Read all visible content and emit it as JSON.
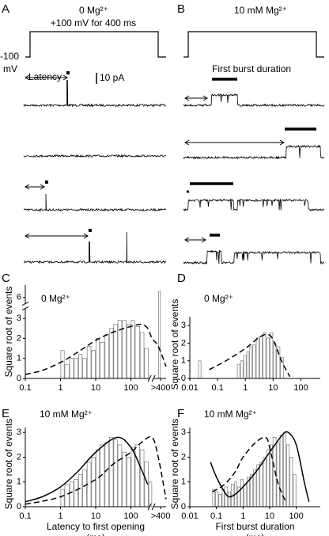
{
  "panels": {
    "a": {
      "label": "A",
      "condition": "0 Mg²⁺",
      "step": "+100 mV for 400 ms",
      "holding": "-100",
      "unit": "mV",
      "latency": "Latency",
      "scale": "10 pA"
    },
    "b": {
      "label": "B",
      "condition": "10 mM Mg²⁺",
      "burst": "First burst duration"
    }
  },
  "chart_data": [
    {
      "type": "histogram",
      "panel": "C",
      "title": "0 Mg²⁺",
      "ylabel": "Square root of events",
      "xlim": [
        0.1,
        1000
      ],
      "xscale": "log",
      "xticks": [
        0.1,
        1,
        10,
        100,
        {
          "value": 700,
          "label": ">400"
        }
      ],
      "ylim": [
        0,
        7
      ],
      "ybreak": [
        3.5,
        5.5
      ],
      "yticks": [
        0,
        1,
        2,
        3,
        6
      ],
      "bins": [
        1,
        1.3,
        1.8,
        2.4,
        3.2,
        4.2,
        5.6,
        7.5,
        10,
        13,
        18,
        24,
        32,
        42,
        56,
        75,
        100,
        130,
        180,
        240,
        320,
        600,
        700
      ],
      "values": [
        1.4,
        0.7,
        1,
        1,
        1.2,
        1,
        1.6,
        1.4,
        2,
        1.8,
        2.2,
        2.5,
        2.7,
        2.9,
        2.9,
        2.7,
        2.9,
        2.6,
        2.3,
        1.5,
        0,
        6.5
      ],
      "curves": [
        {
          "style": "dashed",
          "x": [
            0.1,
            0.3,
            1,
            3,
            10,
            30,
            100,
            200,
            300,
            400,
            600,
            1000
          ],
          "y": [
            0.2,
            0.4,
            0.8,
            1.3,
            1.9,
            2.3,
            2.6,
            2.7,
            2.5,
            2,
            1.6,
            0.6
          ]
        }
      ]
    },
    {
      "type": "histogram",
      "panel": "D",
      "title": "0 Mg²⁺",
      "ylabel": "Square root of events",
      "xlim": [
        0.01,
        500
      ],
      "xscale": "log",
      "xticks": [
        0.01,
        0.1,
        1,
        10,
        100
      ],
      "ylim": [
        0,
        3.5
      ],
      "yticks": [
        0,
        1,
        2,
        3
      ],
      "bins": [
        0.02,
        0.026,
        0.5,
        0.65,
        0.85,
        1.1,
        1.4,
        1.8,
        2.4,
        3.2,
        4.2,
        5.6,
        7.5,
        10,
        13,
        18,
        24
      ],
      "values": [
        1,
        0,
        0.8,
        1,
        1.3,
        1.5,
        1.8,
        1.9,
        2.3,
        2.4,
        2.6,
        2.3,
        2.6,
        2,
        1.8,
        1.2
      ],
      "curves": [
        {
          "style": "dashed",
          "x": [
            0.05,
            0.2,
            1,
            3,
            6,
            10,
            20,
            40
          ],
          "y": [
            0.5,
            1,
            1.7,
            2.3,
            2.5,
            2.2,
            1,
            0.1
          ]
        }
      ]
    },
    {
      "type": "histogram",
      "panel": "E",
      "title": "10 mM Mg²⁺",
      "ylabel": "Square root of events",
      "xlabel": "Latency to first opening",
      "xunit": "(ms)",
      "xlim": [
        0.1,
        1000
      ],
      "xscale": "log",
      "xticks": [
        0.1,
        1,
        10,
        100,
        {
          "value": 700,
          "label": ">400"
        }
      ],
      "ylim": [
        0,
        3.2
      ],
      "yticks": [
        0,
        1,
        2,
        3
      ],
      "bins": [
        1,
        1.3,
        1.8,
        2.4,
        3.2,
        4.2,
        5.6,
        7.5,
        10,
        13,
        18,
        24,
        32,
        42,
        56,
        75,
        100,
        130,
        180,
        240,
        320,
        400
      ],
      "values": [
        0.7,
        0.9,
        1,
        1.1,
        1.3,
        1.5,
        1.8,
        2,
        2.3,
        2.5,
        2.6,
        2.8,
        2.7,
        2.5,
        2.2,
        2,
        2.4,
        2.5,
        2.3,
        1.8,
        1
      ],
      "curves": [
        {
          "style": "solid",
          "x": [
            0.1,
            0.3,
            1,
            3,
            10,
            40,
            100,
            200,
            300
          ],
          "y": [
            0.2,
            0.4,
            0.8,
            1.4,
            2.2,
            2.8,
            2.4,
            1.5,
            0.9
          ]
        },
        {
          "style": "dashed",
          "x": [
            0.1,
            1,
            10,
            30,
            100,
            200,
            400,
            600,
            1000
          ],
          "y": [
            0.1,
            0.4,
            1.1,
            1.7,
            2.2,
            2.6,
            2.8,
            2,
            0.3
          ]
        }
      ]
    },
    {
      "type": "histogram",
      "panel": "F",
      "title": "10 mM Mg²⁺",
      "ylabel": "Square root of events",
      "xlabel": "First burst duration",
      "xunit": "(ms)",
      "xlim": [
        0.01,
        800
      ],
      "xscale": "log",
      "xticks": [
        0.01,
        0.1,
        1,
        10,
        100
      ],
      "ylim": [
        0,
        3.2
      ],
      "yticks": [
        0,
        1,
        2,
        3
      ],
      "bins": [
        0.07,
        0.09,
        0.12,
        0.16,
        0.2,
        0.27,
        0.35,
        0.47,
        0.6,
        0.8,
        1.05,
        1.4,
        1.8,
        2.4,
        3.2,
        4.2,
        5.6,
        7.5,
        10,
        13,
        18,
        24,
        32,
        42,
        56,
        75,
        100
      ],
      "values": [
        0.7,
        0.6,
        0.5,
        0.7,
        0.8,
        0.6,
        0.9,
        1,
        0.8,
        1.1,
        0.9,
        1.2,
        1.3,
        1.5,
        1.7,
        1.8,
        2,
        2.3,
        2.5,
        2.8,
        2.6,
        2.9,
        3,
        2.5,
        2,
        1.3
      ],
      "curves": [
        {
          "style": "solid",
          "x": [
            0.06,
            0.1,
            0.2,
            0.3,
            0.5,
            1,
            3,
            10,
            30,
            50,
            100,
            200,
            300
          ],
          "y": [
            1.8,
            1.2,
            0.6,
            0.4,
            0.5,
            0.8,
            1.4,
            2.2,
            2.9,
            3,
            2.5,
            1,
            0.2
          ]
        },
        {
          "style": "dashed",
          "x": [
            0.07,
            0.2,
            0.5,
            1,
            3,
            7,
            10,
            20,
            40
          ],
          "y": [
            0.6,
            0.9,
            1.4,
            2,
            2.6,
            2.8,
            2.4,
            1,
            0.2
          ]
        }
      ]
    }
  ]
}
